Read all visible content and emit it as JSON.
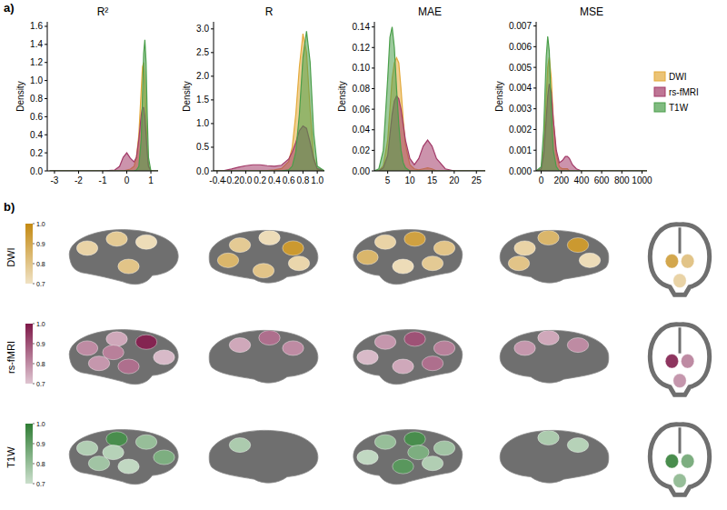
{
  "chart_data": [
    {
      "type": "density",
      "panel_label": "a)",
      "title": "R²",
      "y_label": "Density",
      "x": [
        -3.2,
        -2,
        -1,
        -0.5,
        -0.3,
        -0.15,
        0,
        0.15,
        0.3,
        0.4,
        0.5,
        0.6,
        0.65,
        0.7,
        0.75,
        0.8,
        0.85,
        0.9,
        1.0,
        1.3
      ],
      "series": [
        {
          "color": "#e3a93a",
          "values": [
            0,
            0,
            0,
            0,
            0,
            0,
            0.01,
            0.02,
            0.05,
            0.15,
            0.4,
            0.9,
            1.15,
            1.2,
            1.0,
            0.6,
            0.25,
            0.06,
            0,
            0
          ]
        },
        {
          "color": "#a23a68",
          "values": [
            0,
            0,
            0,
            0.01,
            0.05,
            0.15,
            0.2,
            0.14,
            0.1,
            0.15,
            0.35,
            0.62,
            0.7,
            0.7,
            0.6,
            0.4,
            0.2,
            0.05,
            0,
            0
          ]
        },
        {
          "color": "#4a9e4a",
          "values": [
            0,
            0,
            0,
            0,
            0,
            0,
            0,
            0,
            0,
            0.01,
            0.05,
            0.35,
            0.8,
            1.3,
            1.45,
            1.2,
            0.6,
            0.15,
            0,
            0
          ]
        }
      ],
      "xlim": [
        -3.3,
        1.3
      ],
      "xticks": [
        -3,
        -2,
        -1,
        0,
        1
      ],
      "ylim": [
        0,
        1.65
      ],
      "yticks": [
        {
          "value": 0,
          "label": "0.0"
        },
        {
          "value": 0.2,
          "label": "0.2"
        },
        {
          "value": 0.4,
          "label": "0.4"
        },
        {
          "value": 0.6,
          "label": "0.6"
        },
        {
          "value": 0.8,
          "label": "0.8"
        },
        {
          "value": 1.0,
          "label": "1.0"
        },
        {
          "value": 1.2,
          "label": "1.2"
        },
        {
          "value": 1.4,
          "label": "1.4"
        },
        {
          "value": 1.6,
          "label": "1.6"
        }
      ]
    },
    {
      "type": "density",
      "title": "R",
      "y_label": "Density",
      "x": [
        -0.45,
        -0.3,
        -0.2,
        -0.1,
        0,
        0.1,
        0.2,
        0.3,
        0.4,
        0.5,
        0.6,
        0.65,
        0.7,
        0.75,
        0.8,
        0.85,
        0.9,
        0.95,
        1.0,
        1.1
      ],
      "series": [
        {
          "color": "#e3a93a",
          "values": [
            0,
            0,
            0,
            0,
            0,
            0,
            0,
            0.01,
            0.02,
            0.05,
            0.2,
            0.5,
            1.2,
            2.2,
            2.9,
            2.5,
            1.3,
            0.3,
            0.03,
            0
          ]
        },
        {
          "color": "#a23a68",
          "values": [
            0,
            0.01,
            0.04,
            0.08,
            0.11,
            0.13,
            0.13,
            0.11,
            0.1,
            0.12,
            0.25,
            0.4,
            0.6,
            0.85,
            0.95,
            0.9,
            0.6,
            0.25,
            0.05,
            0
          ]
        },
        {
          "color": "#4a9e4a",
          "values": [
            0,
            0,
            0,
            0,
            0,
            0,
            0,
            0,
            0,
            0,
            0.02,
            0.1,
            0.4,
            1.2,
            2.4,
            2.95,
            2.3,
            0.8,
            0.1,
            0
          ]
        }
      ],
      "xlim": [
        -0.45,
        1.1
      ],
      "xticks": [
        {
          "value": -0.4,
          "label": "-0.4"
        },
        {
          "value": -0.2,
          "label": "-0.2"
        },
        {
          "value": 0,
          "label": "0.0"
        },
        {
          "value": 0.2,
          "label": "0.2"
        },
        {
          "value": 0.4,
          "label": "0.4"
        },
        {
          "value": 0.6,
          "label": "0.6"
        },
        {
          "value": 0.8,
          "label": "0.8"
        },
        {
          "value": 1.0,
          "label": "1.0"
        }
      ],
      "ylim": [
        0,
        3.15
      ],
      "yticks": [
        {
          "value": 0,
          "label": "0.0"
        },
        {
          "value": 0.5,
          "label": "0.5"
        },
        {
          "value": 1.0,
          "label": "1.0"
        },
        {
          "value": 1.5,
          "label": "1.5"
        },
        {
          "value": 2.0,
          "label": "2.0"
        },
        {
          "value": 2.5,
          "label": "2.5"
        },
        {
          "value": 3.0,
          "label": "3.0"
        }
      ]
    },
    {
      "type": "density",
      "title": "MAE",
      "y_label": "Density",
      "x": [
        2,
        3,
        4,
        5,
        5.5,
        6,
        6.5,
        7,
        7.5,
        8,
        8.5,
        9,
        10,
        11,
        12,
        13,
        14,
        15,
        16,
        18,
        20,
        27
      ],
      "series": [
        {
          "color": "#e3a93a",
          "values": [
            0,
            0,
            0.005,
            0.03,
            0.06,
            0.09,
            0.105,
            0.11,
            0.105,
            0.08,
            0.05,
            0.025,
            0.006,
            0.002,
            0.001,
            0.002,
            0.003,
            0.002,
            0,
            0,
            0,
            0
          ]
        },
        {
          "color": "#a23a68",
          "values": [
            0,
            0,
            0.003,
            0.015,
            0.035,
            0.055,
            0.068,
            0.073,
            0.07,
            0.06,
            0.045,
            0.03,
            0.012,
            0.006,
            0.012,
            0.024,
            0.03,
            0.024,
            0.012,
            0.002,
            0,
            0
          ]
        },
        {
          "color": "#4a9e4a",
          "values": [
            0,
            0.002,
            0.02,
            0.09,
            0.13,
            0.14,
            0.12,
            0.08,
            0.045,
            0.02,
            0.008,
            0.003,
            0,
            0,
            0,
            0,
            0,
            0,
            0,
            0,
            0,
            0
          ]
        }
      ],
      "xlim": [
        2,
        27
      ],
      "xticks": [
        5,
        10,
        15,
        20,
        25
      ],
      "ylim": [
        0,
        0.145
      ],
      "yticks": [
        {
          "value": 0,
          "label": "0.00"
        },
        {
          "value": 0.02,
          "label": "0.02"
        },
        {
          "value": 0.04,
          "label": "0.04"
        },
        {
          "value": 0.06,
          "label": "0.06"
        },
        {
          "value": 0.08,
          "label": "0.08"
        },
        {
          "value": 0.1,
          "label": "0.10"
        },
        {
          "value": 0.12,
          "label": "0.12"
        },
        {
          "value": 0.14,
          "label": "0.14"
        }
      ]
    },
    {
      "type": "density",
      "title": "MSE",
      "y_label": "Density",
      "legend": "right",
      "x": [
        -50,
        0,
        25,
        50,
        65,
        80,
        100,
        120,
        150,
        180,
        210,
        240,
        260,
        280,
        310,
        350,
        400,
        600,
        1050
      ],
      "series": [
        {
          "name": "DWI",
          "color": "#e3a93a",
          "values": [
            0,
            0.0001,
            0.001,
            0.0035,
            0.005,
            0.0055,
            0.0045,
            0.0025,
            0.0008,
            0.0002,
            0.0001,
            0.0001,
            0.0001,
            0,
            0,
            0,
            0,
            0,
            0
          ]
        },
        {
          "name": "rs-fMRI",
          "color": "#a23a68",
          "values": [
            0,
            0.0001,
            0.0008,
            0.0025,
            0.0036,
            0.0042,
            0.0038,
            0.0025,
            0.001,
            0.0004,
            0.0005,
            0.0007,
            0.0007,
            0.0006,
            0.0003,
            0.0001,
            0,
            0,
            0
          ]
        },
        {
          "name": "T1W",
          "color": "#4a9e4a",
          "values": [
            0,
            0.0002,
            0.002,
            0.0055,
            0.0065,
            0.0058,
            0.003,
            0.001,
            0.0002,
            0,
            0,
            0,
            0,
            0,
            0,
            0,
            0,
            0,
            0
          ]
        }
      ],
      "xlim": [
        -50,
        1050
      ],
      "xticks": [
        0,
        200,
        400,
        600,
        800,
        1000
      ],
      "ylim": [
        0,
        0.0072
      ],
      "yticks": [
        {
          "value": 0,
          "label": "0.000"
        },
        {
          "value": 0.001,
          "label": "0.001"
        },
        {
          "value": 0.002,
          "label": "0.002"
        },
        {
          "value": 0.003,
          "label": "0.003"
        },
        {
          "value": 0.004,
          "label": "0.004"
        },
        {
          "value": 0.005,
          "label": "0.005"
        },
        {
          "value": 0.006,
          "label": "0.006"
        },
        {
          "value": 0.007,
          "label": "0.007"
        }
      ]
    },
    {
      "type": "brain_map",
      "panel_label": "b)",
      "colorbar_range": [
        0.7,
        1.0
      ],
      "colorbar_ticks": [
        {
          "value": 1.0,
          "label": "1.0"
        },
        {
          "value": 0.9,
          "label": "0.9"
        },
        {
          "value": 0.8,
          "label": "0.8"
        },
        {
          "value": 0.7,
          "label": "0.7"
        }
      ],
      "series": [
        {
          "name": "DWI",
          "color": "#c48a12",
          "values": [
            [
              0.75,
              0.78,
              0.72,
              0.8
            ],
            [
              0.78,
              0.72,
              0.95,
              0.85,
              0.74,
              0.8
            ],
            [
              0.8,
              0.92,
              0.75,
              0.72,
              0.78,
              0.85
            ],
            [
              0.95,
              0.85,
              0.75,
              0.72,
              0.8
            ],
            [
              0.9,
              0.8,
              0.75
            ]
          ]
        },
        {
          "name": "rs-fMRI",
          "color": "#7e1848",
          "values": [
            [
              0.8,
              0.75,
              0.98,
              0.85,
              0.78,
              0.72,
              0.82
            ],
            [
              0.75,
              0.85,
              0.8
            ],
            [
              0.82,
              0.9,
              0.78,
              0.75,
              0.85,
              0.72
            ],
            [
              0.8,
              0.75,
              0.78
            ],
            [
              0.95,
              0.8,
              0.78
            ]
          ]
        },
        {
          "name": "T1W",
          "color": "#2f7d34",
          "values": [
            [
              0.75,
              0.95,
              0.8,
              0.72,
              0.78,
              0.85,
              0.74
            ],
            [
              0.76
            ],
            [
              0.78,
              0.95,
              0.8,
              0.92,
              0.75,
              0.72,
              0.85
            ],
            [
              0.74,
              0.76
            ],
            [
              0.95,
              0.85,
              0.8
            ]
          ]
        }
      ]
    }
  ]
}
